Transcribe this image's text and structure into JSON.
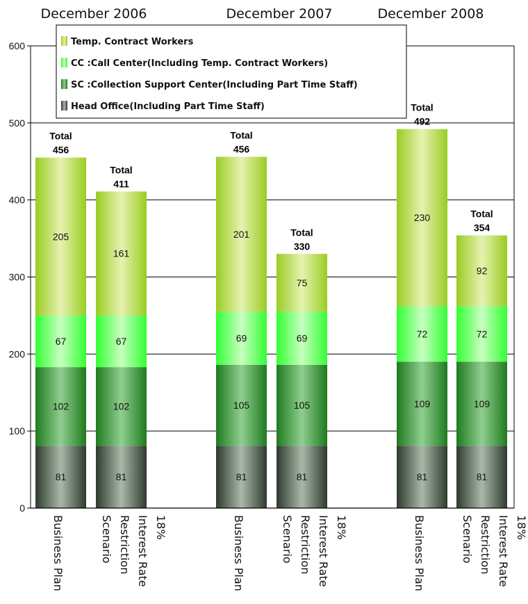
{
  "chart_data": {
    "type": "bar",
    "stacked": true,
    "ylim": [
      0,
      600
    ],
    "yticks": [
      0,
      100,
      200,
      300,
      400,
      500,
      600
    ],
    "grid": true,
    "legend_position": "top-left",
    "groups": [
      {
        "label": "December 2006",
        "bars": [
          {
            "label": "Business Plan",
            "total_label": "Total",
            "total": "456",
            "values": [
              81,
              102,
              67,
              205
            ]
          },
          {
            "label": "Interest Rate Restriction Scenario",
            "label_lines": [
              "Interest Rate",
              "Restriction",
              "Scenario"
            ],
            "suffix": "18%",
            "total_label": "Total",
            "total": "411",
            "values": [
              81,
              102,
              67,
              161
            ]
          }
        ]
      },
      {
        "label": "December 2007",
        "bars": [
          {
            "label": "Business Plan",
            "total_label": "Total",
            "total": "456",
            "values": [
              81,
              105,
              69,
              201
            ]
          },
          {
            "label": "Interest Rate Restriction Scenario",
            "label_lines": [
              "Interest Rate",
              "Restriction",
              "Scenario"
            ],
            "suffix": "18%",
            "total_label": "Total",
            "total": "330",
            "values": [
              81,
              105,
              69,
              75
            ]
          }
        ]
      },
      {
        "label": "December 2008",
        "bars": [
          {
            "label": "Business Plan",
            "total_label": "Total",
            "total": "492",
            "values": [
              81,
              109,
              72,
              230
            ]
          },
          {
            "label": "Interest Rate Restriction Scenario",
            "label_lines": [
              "Interest Rate",
              "Restriction",
              "Scenario"
            ],
            "suffix": "18%",
            "total_label": "Total",
            "total": "354",
            "values": [
              81,
              109,
              72,
              92
            ]
          }
        ]
      }
    ],
    "series": [
      {
        "name": "Head Office(Including Part Time Staff)",
        "color_edge": "#2e3a2e",
        "color_mid": "#a9b9a9"
      },
      {
        "name": "SC :Collection Support Center(Including Part Time Staff)",
        "color_edge": "#1f7a1f",
        "color_mid": "#8fce8f"
      },
      {
        "name": "CC :Call Center(Including Temp. Contract Workers)",
        "color_edge": "#33ff33",
        "color_mid": "#c8ffc0"
      },
      {
        "name": "Temp. Contract Workers",
        "color_edge": "#99cc22",
        "color_mid": "#e6f2b0"
      }
    ],
    "legend_order": [
      3,
      2,
      1,
      0
    ]
  }
}
